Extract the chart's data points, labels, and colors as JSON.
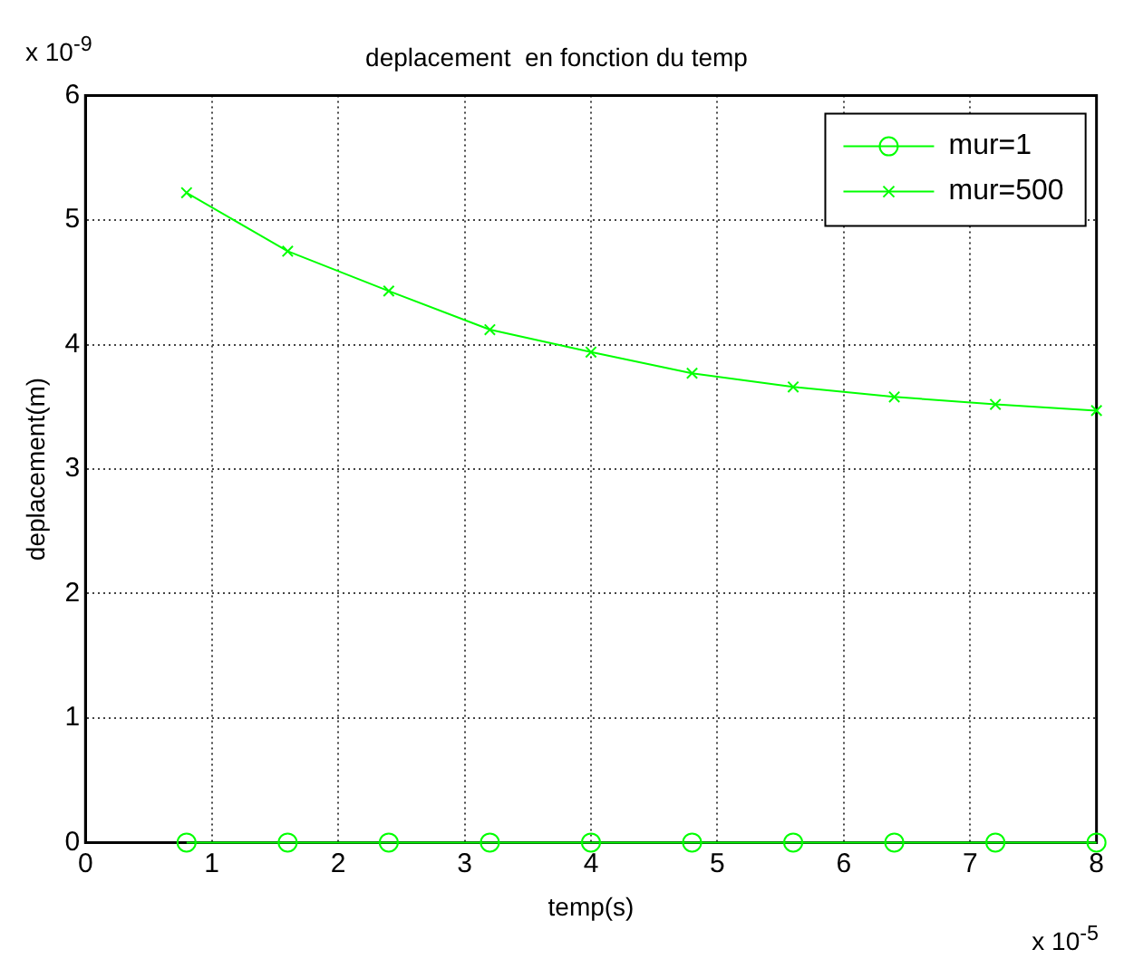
{
  "chart_data": {
    "type": "line",
    "title": "deplacement  en fonction du temp",
    "xlabel": "temp(s)",
    "ylabel": "deplacement(m)",
    "annotations": [
      "x 10$^{-9}$",
      "x 10$^{-5}$"
    ],
    "x": [
      0.8,
      1.6,
      2.4,
      3.2,
      4.0,
      4.8,
      5.6,
      6.4,
      7.2,
      8.0
    ],
    "series": [
      {
        "name": "mur=1",
        "color": "#00ff00",
        "marker": "circle",
        "values": [
          0,
          0,
          0,
          0,
          0,
          0,
          0,
          0,
          0,
          0
        ]
      },
      {
        "name": "mur=500",
        "color": "#00ff00",
        "marker": "cross",
        "values": [
          5.22,
          4.75,
          4.43,
          4.12,
          3.94,
          3.77,
          3.66,
          3.58,
          3.52,
          3.47
        ]
      }
    ],
    "xlim": [
      0,
      8
    ],
    "xticks": [
      0,
      1,
      2,
      3,
      4,
      5,
      6,
      7,
      8
    ],
    "ylim": [
      0,
      6
    ],
    "yticks": [
      0,
      1,
      2,
      3,
      4,
      5,
      6
    ],
    "grid": true,
    "legend": "top right",
    "line_style": "solid"
  }
}
